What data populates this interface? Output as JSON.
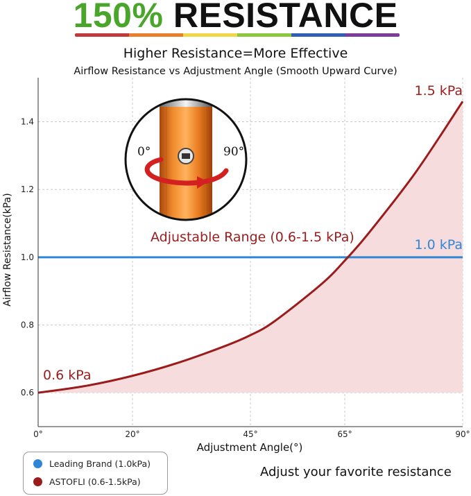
{
  "header": {
    "headline_percent": "150%",
    "headline_word": "RESISTANCE",
    "rainbow_colors": [
      "#c0393b",
      "#e87f2e",
      "#f0d748",
      "#8dc63f",
      "#2f5fb5",
      "#7d3c98"
    ],
    "subtitle": "Higher Resistance=More Effective"
  },
  "chart_data": {
    "type": "line",
    "title": "Airflow Resistance vs Adjustment Angle (Smooth Upward Curve)",
    "xlabel": "Adjustment Angle(°)",
    "ylabel": "Airflow Resistance(kPa)",
    "xlim": [
      0,
      90
    ],
    "ylim": [
      0.5,
      1.53
    ],
    "x_ticks": [
      0,
      20,
      45,
      65,
      90
    ],
    "x_tick_labels": [
      "0°",
      "20°",
      "45°",
      "65°",
      "90°"
    ],
    "y_ticks": [
      0.6,
      0.8,
      1.0,
      1.2,
      1.4
    ],
    "y_tick_labels": [
      "0.6",
      "0.8",
      "1.0",
      "1.2",
      "1.4"
    ],
    "grid": true,
    "series": [
      {
        "name": "ASTOFLI (0.6-1.5kPa)",
        "color": "#9b1c1c",
        "fill": "#f6dcdc",
        "x": [
          0,
          10,
          20,
          30,
          40,
          45,
          50,
          60,
          65,
          70,
          80,
          90
        ],
        "y": [
          0.6,
          0.62,
          0.65,
          0.69,
          0.74,
          0.77,
          0.81,
          0.92,
          0.99,
          1.07,
          1.25,
          1.46
        ]
      },
      {
        "name": "Leading Brand (1.0kPa)",
        "color": "#2f86d6",
        "x": [
          0,
          90
        ],
        "y": [
          1.0,
          1.0
        ]
      }
    ],
    "annotations": {
      "start_label": "0.6 kPa",
      "end_label": "1.5 kPa",
      "reference_label": "1.0 kPa",
      "range_label": "Adjustable Range (0.6-1.5 kPa)"
    },
    "legend_position": "bottom-left"
  },
  "inset": {
    "angle_start": "0°",
    "angle_end": "90°"
  },
  "legend": {
    "items": [
      {
        "label": "Leading Brand (1.0kPa)",
        "color": "#2f86d6"
      },
      {
        "label": "ASTOFLI (0.6-1.5kPa)",
        "color": "#9b1c1c"
      }
    ]
  },
  "caption": "Adjust your favorite resistance"
}
